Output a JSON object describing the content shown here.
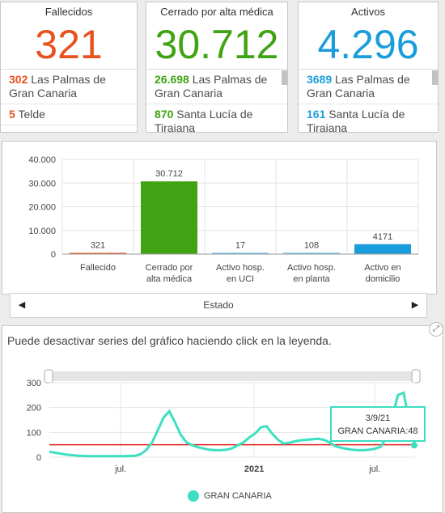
{
  "cards": {
    "fallecidos": {
      "title": "Fallecidos",
      "value": "321",
      "color": "#e8521e",
      "items": [
        {
          "num": "302",
          "label": "Las Palmas de Gran Canaria"
        },
        {
          "num": "5",
          "label": "Telde"
        }
      ]
    },
    "cerrado": {
      "title": "Cerrado por alta médica",
      "value": "30.712",
      "color": "#3fa314",
      "items": [
        {
          "num": "26.698",
          "label": "Las Palmas de Gran Canaria"
        },
        {
          "num": "870",
          "label": "Santa Lucía de Tirajana"
        }
      ]
    },
    "activos": {
      "title": "Activos",
      "value": "4.296",
      "color": "#1a9ddb",
      "items": [
        {
          "num": "3689",
          "label": "Las Palmas de Gran Canaria"
        },
        {
          "num": "161",
          "label": "Santa Lucía de Tirajana"
        }
      ]
    }
  },
  "bar_nav": {
    "label": "Estado"
  },
  "line_panel": {
    "hint": "Puede desactivar series del gráfico haciendo click en la leyenda.",
    "tooltip": {
      "date": "3/9/21",
      "text": "GRAN CANARIA:48"
    },
    "legend": "GRAN CANARIA"
  },
  "chart_data": [
    {
      "type": "bar",
      "categories": [
        "Fallecido",
        "Cerrado por alta médica",
        "Activo hosp. en UCI",
        "Activo hosp. en planta",
        "Activo en domicilio"
      ],
      "values": [
        321,
        30712,
        17,
        108,
        4171
      ],
      "value_labels": [
        "321",
        "30.712",
        "17",
        "108",
        "4171"
      ],
      "colors": [
        "#e8521e",
        "#3fa314",
        "#58b8e8",
        "#58b8e8",
        "#1a9ddb"
      ],
      "ylim": [
        0,
        40000
      ],
      "yticks": [
        "0",
        "10.000",
        "20.000",
        "30.000",
        "40.000"
      ],
      "xlabel": "Estado",
      "grid": true
    },
    {
      "type": "line",
      "series": [
        {
          "name": "GRAN CANARIA",
          "color": "#3ddfc1"
        }
      ],
      "x_labels": [
        "jul.",
        "2021",
        "jul."
      ],
      "ylim": [
        0,
        300
      ],
      "yticks": [
        "0",
        "100",
        "200",
        "300"
      ],
      "reference_line": 50,
      "values": [
        22,
        18,
        14,
        10,
        8,
        6,
        5,
        4,
        4,
        4,
        4,
        4,
        4,
        4,
        5,
        6,
        12,
        30,
        60,
        110,
        160,
        185,
        140,
        90,
        60,
        48,
        40,
        35,
        30,
        28,
        28,
        30,
        36,
        48,
        60,
        80,
        95,
        120,
        125,
        95,
        70,
        55,
        58,
        64,
        68,
        70,
        72,
        74,
        70,
        60,
        45,
        38,
        34,
        30,
        28,
        28,
        30,
        34,
        42,
        80,
        160,
        250,
        260,
        140,
        48
      ],
      "tooltip_point": {
        "x": "3/9/21",
        "y": 48
      }
    }
  ]
}
